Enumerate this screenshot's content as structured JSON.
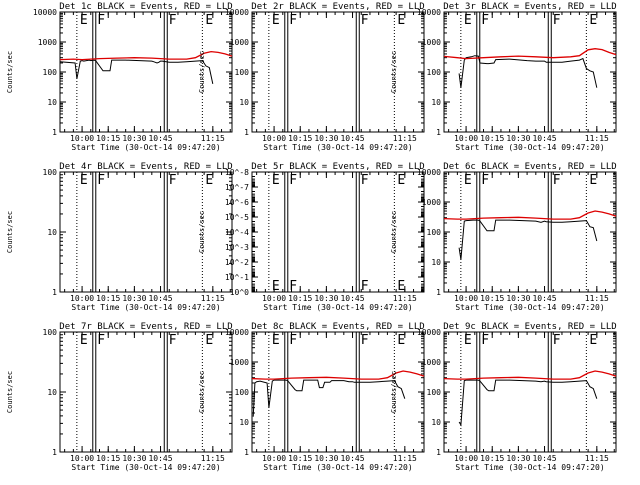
{
  "chart_data": [
    {
      "type": "line",
      "title": "Det 1c BLACK = Events, RED = LLD",
      "ylabel": "Counts/sec",
      "xlabel": "Start Time (30-Oct-14 09:47:20)",
      "yscale": "log",
      "ylim": [
        1,
        10000
      ],
      "yticks": [
        "1",
        "10",
        "100",
        "1000",
        "10000"
      ],
      "xlim": [
        "09:47:20",
        "11:26:00"
      ],
      "xticks": [
        "10:00",
        "10:15",
        "10:30",
        "10:45",
        "11:15"
      ],
      "flags": [
        {
          "label": "E",
          "time": "09:57"
        },
        {
          "label": "F",
          "time": "10:07"
        },
        {
          "label": "F",
          "time": "10:48"
        },
        {
          "label": "E",
          "time": "11:09"
        }
      ],
      "series": [
        {
          "color": "#000000",
          "x": [
            "09:47:20",
            "09:56",
            "09:57",
            "09:59",
            "10:00",
            "10:01",
            "10:04",
            "10:05",
            "10:07",
            "10:08",
            "10:12",
            "10:13",
            "10:16",
            "10:17",
            "10:25",
            "10:40",
            "10:41",
            "10:42",
            "10:43",
            "10:44",
            "10:45",
            "10:46",
            "10:50",
            "10:55",
            "11:00",
            "11:05",
            "11:09",
            "11:11",
            "11:13",
            "11:15"
          ],
          "y": [
            220,
            200,
            60,
            230,
            240,
            230,
            250,
            240,
            250,
            230,
            110,
            110,
            110,
            250,
            250,
            230,
            220,
            210,
            200,
            210,
            230,
            230,
            210,
            210,
            220,
            230,
            240,
            160,
            140,
            40
          ]
        },
        {
          "color": "#dd0000",
          "x": [
            "09:47:20",
            "09:55",
            "10:00",
            "10:10",
            "10:20",
            "10:30",
            "10:40",
            "10:50",
            "11:00",
            "11:05",
            "11:10",
            "11:14",
            "11:18",
            "11:22",
            "11:26"
          ],
          "y": [
            260,
            270,
            260,
            280,
            290,
            300,
            290,
            270,
            270,
            300,
            420,
            480,
            450,
            400,
            340
          ]
        }
      ]
    },
    {
      "type": "line",
      "title": "Det 2r BLACK = Events, RED = LLD",
      "ylabel": "Counts/sec",
      "xlabel": "Start Time (30-Oct-14 09:47:20)",
      "yscale": "log",
      "ylim": [
        1,
        10000
      ],
      "yticks": [
        "1",
        "10",
        "100",
        "1000",
        "10000"
      ],
      "xlim": [
        "09:47:20",
        "11:26:00"
      ],
      "xticks": [
        "10:00",
        "10:15",
        "10:30",
        "10:45",
        "11:15"
      ],
      "flags": [
        {
          "label": "E",
          "time": "09:57"
        },
        {
          "label": "F",
          "time": "10:07"
        },
        {
          "label": "F",
          "time": "10:48"
        },
        {
          "label": "E",
          "time": "11:09"
        }
      ],
      "series": []
    },
    {
      "type": "line",
      "title": "Det 3r BLACK = Events, RED = LLD",
      "ylabel": "Counts/sec",
      "xlabel": "Start Time (30-Oct-14 09:47:20)",
      "yscale": "log",
      "ylim": [
        1,
        10000
      ],
      "yticks": [
        "1",
        "10",
        "100",
        "1000",
        "10000"
      ],
      "xlim": [
        "09:47:20",
        "11:26:00"
      ],
      "xticks": [
        "10:00",
        "10:15",
        "10:30",
        "10:45",
        "11:15"
      ],
      "flags": [
        {
          "label": "E",
          "time": "09:57"
        },
        {
          "label": "F",
          "time": "10:07"
        },
        {
          "label": "F",
          "time": "10:48"
        },
        {
          "label": "E",
          "time": "11:09"
        }
      ],
      "series": [
        {
          "color": "#000000",
          "x": [
            "09:56",
            "09:57",
            "09:59",
            "10:00",
            "10:03",
            "10:05",
            "10:07",
            "10:08",
            "10:12",
            "10:13",
            "10:16",
            "10:17",
            "10:25",
            "10:35",
            "10:40",
            "10:45",
            "10:46",
            "10:50",
            "10:55",
            "11:00",
            "11:05",
            "11:07",
            "11:09",
            "11:11",
            "11:13",
            "11:15"
          ],
          "y": [
            90,
            30,
            250,
            300,
            320,
            350,
            340,
            200,
            190,
            190,
            200,
            260,
            270,
            240,
            230,
            230,
            210,
            210,
            210,
            230,
            250,
            280,
            130,
            110,
            100,
            30
          ]
        },
        {
          "color": "#dd0000",
          "x": [
            "09:47:20",
            "09:55",
            "10:00",
            "10:10",
            "10:20",
            "10:30",
            "10:40",
            "10:50",
            "11:00",
            "11:05",
            "11:10",
            "11:14",
            "11:18",
            "11:22",
            "11:26"
          ],
          "y": [
            330,
            300,
            280,
            300,
            320,
            340,
            320,
            300,
            320,
            350,
            550,
            600,
            560,
            450,
            380
          ]
        }
      ]
    },
    {
      "type": "line",
      "title": "Det 4r BLACK = Events, RED = LLD",
      "ylabel": "Counts/sec",
      "xlabel": "Start Time (30-Oct-14 09:47:20)",
      "yscale": "log",
      "ylim": [
        1,
        100
      ],
      "yticks": [
        "1",
        "10",
        "100"
      ],
      "xlim": [
        "09:47:20",
        "11:26:00"
      ],
      "xticks": [
        "10:00",
        "10:15",
        "10:30",
        "10:45",
        "11:15"
      ],
      "flags": [
        {
          "label": "E",
          "time": "09:57"
        },
        {
          "label": "F",
          "time": "10:07"
        },
        {
          "label": "F",
          "time": "10:48"
        },
        {
          "label": "E",
          "time": "11:09"
        }
      ],
      "series": []
    },
    {
      "type": "line",
      "title": "Det 5r BLACK = Events, RED = LLD",
      "ylabel": "Counts/sec",
      "xlabel": "Start Time (30-Oct-14 09:47:20)",
      "yscale": "log",
      "ylim": [
        1,
        1e-08
      ],
      "yticks": [
        "10^0",
        "10^-1",
        "10^-2",
        "10^-3",
        "10^-4",
        "10^-5",
        "10^-6",
        "10^-7",
        "10^-8"
      ],
      "xlim": [
        "09:47:20",
        "11:26:00"
      ],
      "xticks": [
        "10:00",
        "10:15",
        "10:30",
        "10:45",
        "11:15"
      ],
      "flags": [
        {
          "label": "E",
          "time": "09:57"
        },
        {
          "label": "F",
          "time": "10:07"
        },
        {
          "label": "F",
          "time": "10:48"
        },
        {
          "label": "E",
          "time": "11:09"
        }
      ],
      "series": []
    },
    {
      "type": "line",
      "title": "Det 6c BLACK = Events, RED = LLD",
      "ylabel": "Counts/sec",
      "xlabel": "Start Time (30-Oct-14 09:47:20)",
      "yscale": "log",
      "ylim": [
        1,
        10000
      ],
      "yticks": [
        "1",
        "10",
        "100",
        "1000",
        "10000"
      ],
      "xlim": [
        "09:47:20",
        "11:26:00"
      ],
      "xticks": [
        "10:00",
        "10:15",
        "10:30",
        "10:45",
        "11:15"
      ],
      "flags": [
        {
          "label": "E",
          "time": "09:57"
        },
        {
          "label": "F",
          "time": "10:07"
        },
        {
          "label": "F",
          "time": "10:48"
        },
        {
          "label": "E",
          "time": "11:09"
        }
      ],
      "series": [
        {
          "color": "#000000",
          "x": [
            "09:56",
            "09:57",
            "09:59",
            "10:00",
            "10:04",
            "10:07",
            "10:08",
            "10:12",
            "10:13",
            "10:16",
            "10:17",
            "10:25",
            "10:40",
            "10:43",
            "10:45",
            "10:46",
            "10:50",
            "10:55",
            "11:00",
            "11:05",
            "11:09",
            "11:11",
            "11:13",
            "11:15"
          ],
          "y": [
            30,
            12,
            230,
            240,
            250,
            250,
            230,
            110,
            110,
            110,
            250,
            250,
            230,
            210,
            230,
            220,
            210,
            210,
            220,
            230,
            240,
            150,
            140,
            50
          ]
        },
        {
          "color": "#dd0000",
          "x": [
            "09:47:20",
            "09:55",
            "10:00",
            "10:10",
            "10:20",
            "10:30",
            "10:40",
            "10:50",
            "11:00",
            "11:05",
            "11:10",
            "11:14",
            "11:18",
            "11:22",
            "11:26"
          ],
          "y": [
            280,
            270,
            270,
            290,
            300,
            310,
            290,
            270,
            270,
            300,
            430,
            500,
            460,
            400,
            340
          ]
        }
      ]
    },
    {
      "type": "line",
      "title": "Det 7r BLACK = Events, RED = LLD",
      "ylabel": "Counts/sec",
      "xlabel": "Start Time (30-Oct-14 09:47:20)",
      "yscale": "log",
      "ylim": [
        1,
        100
      ],
      "yticks": [
        "1",
        "10",
        "100"
      ],
      "xlim": [
        "09:47:20",
        "11:26:00"
      ],
      "xticks": [
        "10:00",
        "10:15",
        "10:30",
        "10:45",
        "11:15"
      ],
      "flags": [
        {
          "label": "E",
          "time": "09:57"
        },
        {
          "label": "F",
          "time": "10:07"
        },
        {
          "label": "F",
          "time": "10:48"
        },
        {
          "label": "E",
          "time": "11:09"
        }
      ],
      "series": []
    },
    {
      "type": "line",
      "title": "Det 8c BLACK = Events, RED = LLD",
      "ylabel": "Counts/sec",
      "xlabel": "Start Time (30-Oct-14 09:47:20)",
      "yscale": "log",
      "ylim": [
        1,
        10000
      ],
      "yticks": [
        "1",
        "10",
        "100",
        "1000",
        "10000"
      ],
      "xlim": [
        "09:47:20",
        "11:26:00"
      ],
      "xticks": [
        "10:00",
        "10:15",
        "10:30",
        "10:45",
        "11:15"
      ],
      "flags": [
        {
          "label": "E",
          "time": "09:57"
        },
        {
          "label": "F",
          "time": "10:07"
        },
        {
          "label": "F",
          "time": "10:48"
        },
        {
          "label": "E",
          "time": "11:09"
        }
      ],
      "series": [
        {
          "color": "#000000",
          "x": [
            "09:48",
            "09:49",
            "09:50",
            "09:52",
            "09:56",
            "09:57",
            "09:59",
            "10:00",
            "10:04",
            "10:07",
            "10:08",
            "10:12",
            "10:13",
            "10:16",
            "10:17",
            "10:25",
            "10:26",
            "10:28",
            "10:29",
            "10:32",
            "10:33",
            "10:40",
            "10:43",
            "10:45",
            "10:46",
            "10:50",
            "10:55",
            "11:00",
            "11:05",
            "11:09",
            "11:11",
            "11:13",
            "11:15"
          ],
          "y": [
            15,
            200,
            220,
            230,
            200,
            30,
            230,
            250,
            250,
            250,
            230,
            120,
            110,
            110,
            250,
            250,
            140,
            140,
            210,
            210,
            240,
            240,
            220,
            220,
            210,
            210,
            210,
            220,
            230,
            240,
            150,
            130,
            60
          ]
        },
        {
          "color": "#dd0000",
          "x": [
            "09:47:20",
            "09:55",
            "10:00",
            "10:10",
            "10:20",
            "10:30",
            "10:40",
            "10:50",
            "11:00",
            "11:05",
            "11:10",
            "11:14",
            "11:18",
            "11:22",
            "11:26"
          ],
          "y": [
            280,
            270,
            270,
            290,
            300,
            310,
            290,
            270,
            270,
            300,
            430,
            500,
            460,
            400,
            340
          ]
        }
      ]
    },
    {
      "type": "line",
      "title": "Det 9c BLACK = Events, RED = LLD",
      "ylabel": "Counts/sec",
      "xlabel": "Start Time (30-Oct-14 09:47:20)",
      "yscale": "log",
      "ylim": [
        1,
        10000
      ],
      "yticks": [
        "1",
        "10",
        "100",
        "1000",
        "10000"
      ],
      "xlim": [
        "09:47:20",
        "11:26:00"
      ],
      "xticks": [
        "10:00",
        "10:15",
        "10:30",
        "10:45",
        "11:15"
      ],
      "flags": [
        {
          "label": "E",
          "time": "09:57"
        },
        {
          "label": "F",
          "time": "10:07"
        },
        {
          "label": "F",
          "time": "10:48"
        },
        {
          "label": "E",
          "time": "11:09"
        }
      ],
      "series": [
        {
          "color": "#000000",
          "x": [
            "09:56",
            "09:57",
            "09:59",
            "10:00",
            "10:04",
            "10:07",
            "10:08",
            "10:12",
            "10:13",
            "10:16",
            "10:17",
            "10:25",
            "10:40",
            "10:43",
            "10:45",
            "10:46",
            "10:50",
            "10:55",
            "11:00",
            "11:05",
            "11:09",
            "11:11",
            "11:13",
            "11:15"
          ],
          "y": [
            10,
            8,
            240,
            250,
            250,
            250,
            230,
            120,
            110,
            110,
            250,
            250,
            230,
            220,
            230,
            220,
            210,
            210,
            220,
            230,
            240,
            150,
            130,
            60
          ]
        },
        {
          "color": "#dd0000",
          "x": [
            "09:47:20",
            "09:55",
            "10:00",
            "10:10",
            "10:20",
            "10:30",
            "10:40",
            "10:50",
            "11:00",
            "11:05",
            "11:10",
            "11:14",
            "11:18",
            "11:22",
            "11:26"
          ],
          "y": [
            280,
            270,
            270,
            290,
            300,
            310,
            290,
            270,
            270,
            300,
            430,
            500,
            460,
            400,
            340
          ]
        }
      ]
    }
  ]
}
